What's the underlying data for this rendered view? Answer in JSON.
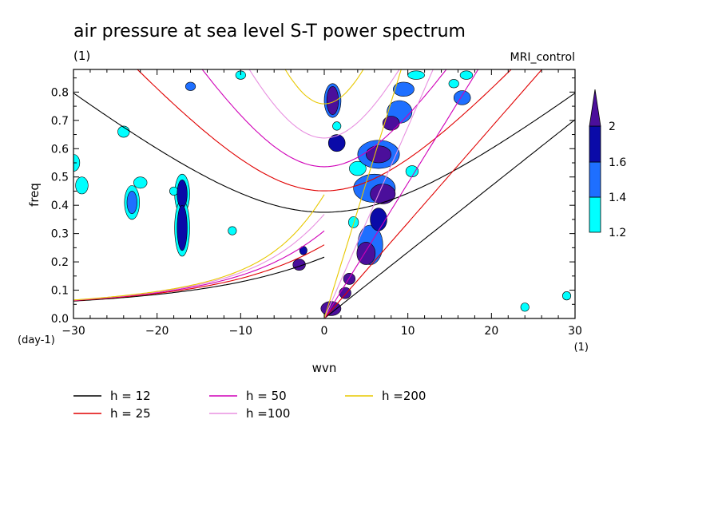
{
  "title": "air pressure at sea level S-T power spectrum",
  "units_left": "(1)",
  "model": "MRI_control",
  "chart_data": {
    "type": "heatmap",
    "title": "air pressure at sea level S-T power spectrum",
    "xlabel": "wvn",
    "ylabel": "freq",
    "x_units": "(1)",
    "y_units": "(day-1)",
    "xlim": [
      -30,
      30
    ],
    "ylim": [
      0,
      0.88
    ],
    "xticks": [
      -30,
      -20,
      -10,
      0,
      10,
      20,
      30
    ],
    "xtick_labels": [
      "−30",
      "−20",
      "−10",
      "0",
      "10",
      "20",
      "30"
    ],
    "yticks": [
      0,
      0.1,
      0.2,
      0.3,
      0.4,
      0.5,
      0.6,
      0.7,
      0.8
    ],
    "ytick_labels": [
      "0.0",
      "0.1",
      "0.2",
      "0.3",
      "0.4",
      "0.5",
      "0.6",
      "0.7",
      "0.8"
    ],
    "grid": false,
    "colorbar": {
      "levels": [
        1.2,
        1.4,
        1.6,
        2
      ],
      "labels": [
        "1.2",
        "1.4",
        "1.6",
        "2"
      ],
      "colors": [
        "#00ffff",
        "#1e6fff",
        "#0a0aa8",
        "#4b0f9b"
      ]
    },
    "dispersion_curves": [
      {
        "name": "h = 12",
        "h": 12,
        "color": "#000000"
      },
      {
        "name": "h = 25",
        "h": 25,
        "color": "#e00000"
      },
      {
        "name": "h = 50",
        "h": 50,
        "color": "#d000b8"
      },
      {
        "name": "h =100",
        "h": 100,
        "color": "#e890e0"
      },
      {
        "name": "h =200",
        "h": 200,
        "color": "#e8c800"
      }
    ],
    "blobs": [
      {
        "x": 1.5,
        "y": 0.62,
        "w": 2.0,
        "h": 0.06,
        "level": 3
      },
      {
        "x": 1.0,
        "y": 0.77,
        "w": 1.4,
        "h": 0.1,
        "level": 4
      },
      {
        "x": 1.0,
        "y": 0.77,
        "w": 2.0,
        "h": 0.12,
        "level": 2
      },
      {
        "x": -17,
        "y": 0.44,
        "w": 1.2,
        "h": 0.1,
        "level": 3
      },
      {
        "x": -17,
        "y": 0.44,
        "w": 1.8,
        "h": 0.14,
        "level": 1
      },
      {
        "x": -17,
        "y": 0.32,
        "w": 1.2,
        "h": 0.16,
        "level": 3
      },
      {
        "x": -17,
        "y": 0.32,
        "w": 1.8,
        "h": 0.2,
        "level": 1
      },
      {
        "x": -23,
        "y": 0.41,
        "w": 1.2,
        "h": 0.08,
        "level": 2
      },
      {
        "x": -23,
        "y": 0.41,
        "w": 1.8,
        "h": 0.12,
        "level": 1
      },
      {
        "x": -30,
        "y": 0.55,
        "w": 1.5,
        "h": 0.06,
        "level": 1
      },
      {
        "x": -29,
        "y": 0.47,
        "w": 1.5,
        "h": 0.06,
        "level": 1
      },
      {
        "x": -22,
        "y": 0.48,
        "w": 1.6,
        "h": 0.04,
        "level": 1
      },
      {
        "x": -24,
        "y": 0.66,
        "w": 1.4,
        "h": 0.04,
        "level": 1
      },
      {
        "x": -11,
        "y": 0.31,
        "w": 1.0,
        "h": 0.03,
        "level": 1
      },
      {
        "x": -18,
        "y": 0.45,
        "w": 1.0,
        "h": 0.03,
        "level": 1
      },
      {
        "x": -3,
        "y": 0.19,
        "w": 1.5,
        "h": 0.04,
        "level": 4
      },
      {
        "x": -2.5,
        "y": 0.24,
        "w": 0.9,
        "h": 0.03,
        "level": 3
      },
      {
        "x": -16,
        "y": 0.82,
        "w": 1.2,
        "h": 0.03,
        "level": 2
      },
      {
        "x": -10,
        "y": 0.86,
        "w": 1.2,
        "h": 0.03,
        "level": 1
      },
      {
        "x": 24,
        "y": 0.04,
        "w": 1.0,
        "h": 0.03,
        "level": 1
      },
      {
        "x": 29,
        "y": 0.08,
        "w": 1.0,
        "h": 0.03,
        "level": 1
      },
      {
        "x": 0.8,
        "y": 0.035,
        "w": 2.4,
        "h": 0.05,
        "level": 4
      },
      {
        "x": 2.5,
        "y": 0.09,
        "w": 1.4,
        "h": 0.04,
        "level": 4
      },
      {
        "x": 3.0,
        "y": 0.14,
        "w": 1.4,
        "h": 0.04,
        "level": 4
      },
      {
        "x": 5.0,
        "y": 0.23,
        "w": 2.2,
        "h": 0.08,
        "level": 4
      },
      {
        "x": 5.5,
        "y": 0.26,
        "w": 3.0,
        "h": 0.14,
        "level": 2
      },
      {
        "x": 6.5,
        "y": 0.35,
        "w": 2.0,
        "h": 0.08,
        "level": 3
      },
      {
        "x": 7.0,
        "y": 0.44,
        "w": 3.0,
        "h": 0.07,
        "level": 4
      },
      {
        "x": 6.0,
        "y": 0.46,
        "w": 5.0,
        "h": 0.1,
        "level": 2
      },
      {
        "x": 6.5,
        "y": 0.58,
        "w": 3.0,
        "h": 0.06,
        "level": 4
      },
      {
        "x": 6.5,
        "y": 0.58,
        "w": 5.0,
        "h": 0.1,
        "level": 2
      },
      {
        "x": 8.0,
        "y": 0.69,
        "w": 2.0,
        "h": 0.05,
        "level": 4
      },
      {
        "x": 9.0,
        "y": 0.73,
        "w": 3.0,
        "h": 0.08,
        "level": 2
      },
      {
        "x": 9.5,
        "y": 0.81,
        "w": 2.5,
        "h": 0.05,
        "level": 2
      },
      {
        "x": 11.0,
        "y": 0.86,
        "w": 2.0,
        "h": 0.03,
        "level": 1
      },
      {
        "x": 16.5,
        "y": 0.78,
        "w": 2.0,
        "h": 0.05,
        "level": 2
      },
      {
        "x": 17.0,
        "y": 0.86,
        "w": 1.5,
        "h": 0.03,
        "level": 1
      },
      {
        "x": 15.5,
        "y": 0.83,
        "w": 1.2,
        "h": 0.03,
        "level": 1
      },
      {
        "x": 3.5,
        "y": 0.34,
        "w": 1.2,
        "h": 0.04,
        "level": 1
      },
      {
        "x": 4.0,
        "y": 0.53,
        "w": 2.0,
        "h": 0.05,
        "level": 1
      },
      {
        "x": 10.5,
        "y": 0.52,
        "w": 1.5,
        "h": 0.04,
        "level": 1
      },
      {
        "x": 1.5,
        "y": 0.68,
        "w": 1.0,
        "h": 0.03,
        "level": 1
      }
    ]
  },
  "legend": {
    "items": [
      {
        "label": "h = 12",
        "color": "#000000"
      },
      {
        "label": "h = 25",
        "color": "#e00000"
      },
      {
        "label": "h = 50",
        "color": "#d000b8"
      },
      {
        "label": "h =100",
        "color": "#e890e0"
      },
      {
        "label": "h =200",
        "color": "#e8c800"
      }
    ]
  }
}
